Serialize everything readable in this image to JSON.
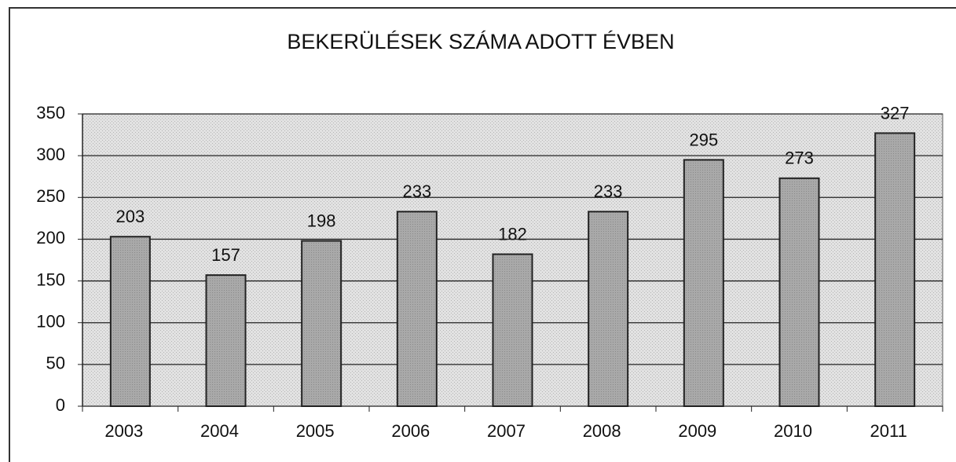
{
  "chart_data": {
    "type": "bar",
    "title": "BEKERÜLÉSEK SZÁMA ADOTT ÉVBEN",
    "categories": [
      "2003",
      "2004",
      "2005",
      "2006",
      "2007",
      "2008",
      "2009",
      "2010",
      "2011"
    ],
    "values": [
      203,
      157,
      198,
      233,
      182,
      233,
      295,
      273,
      327
    ],
    "color": "#a9a9a9",
    "ylim": [
      0,
      350
    ],
    "yticks": [
      0,
      50,
      100,
      150,
      200,
      250,
      300,
      350
    ],
    "grid": true
  }
}
